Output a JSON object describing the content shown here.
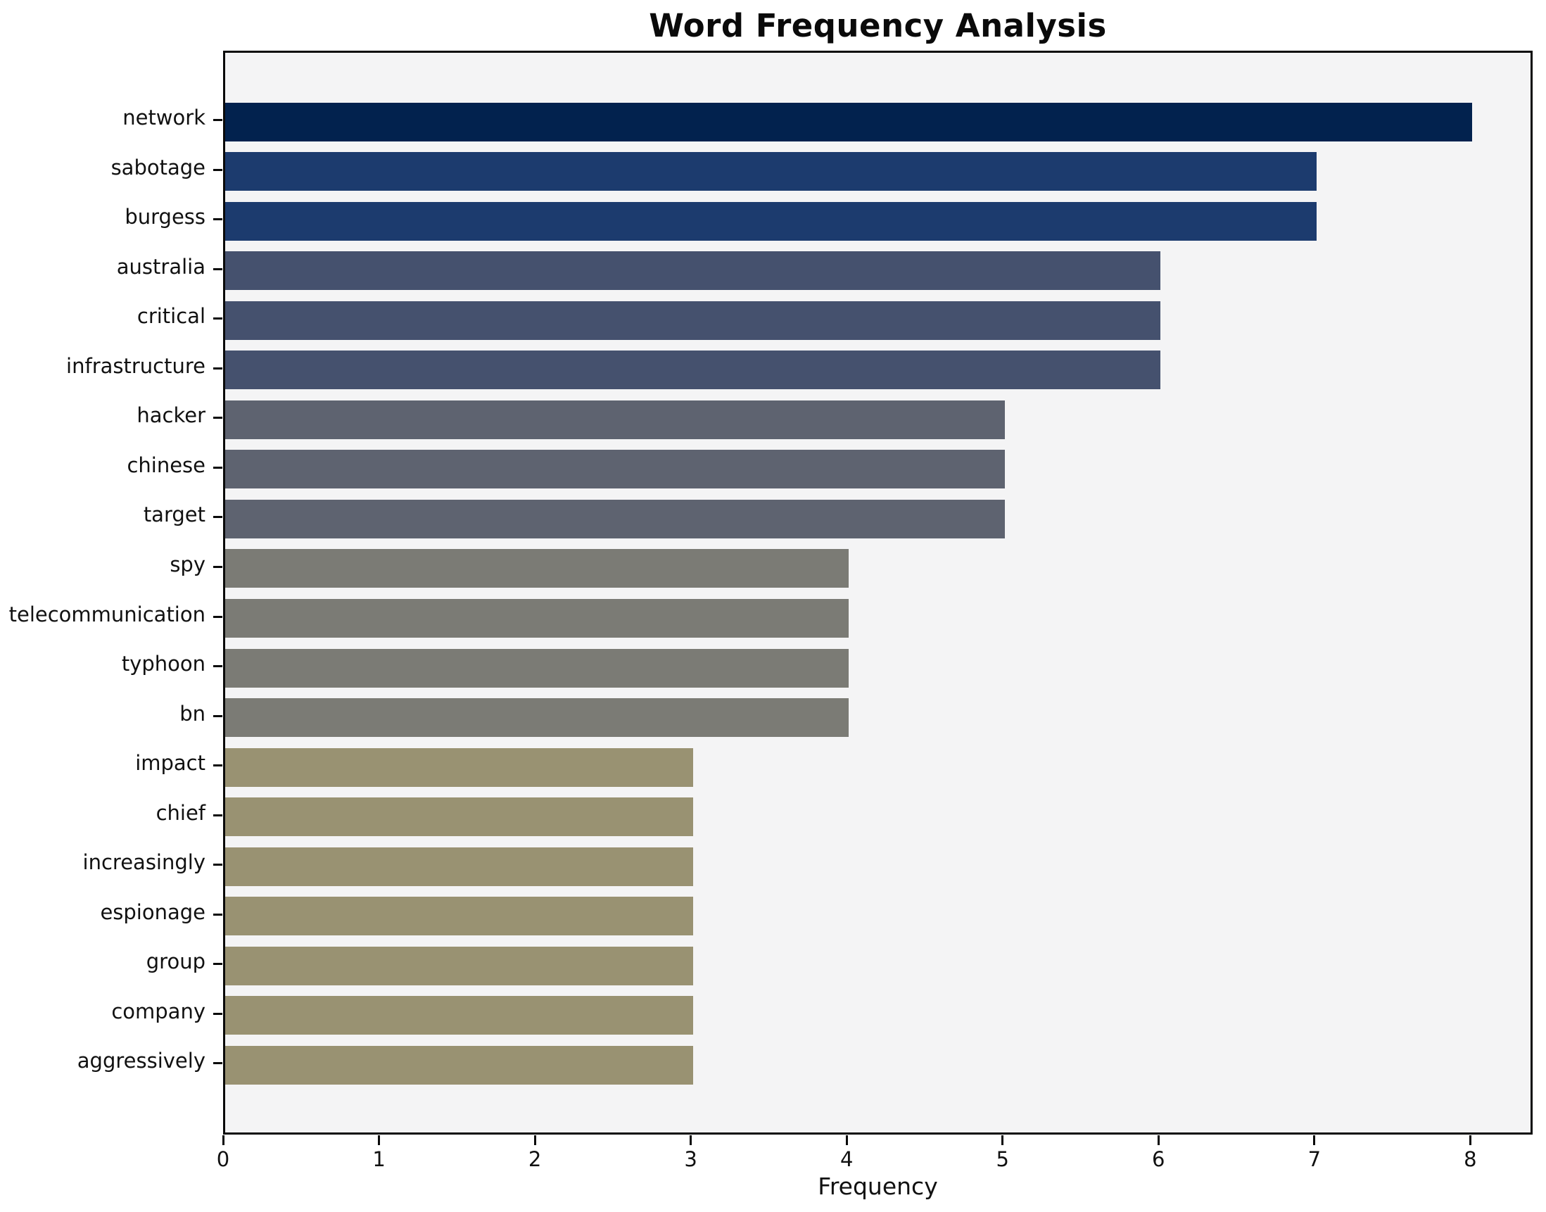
{
  "chart_data": {
    "type": "bar",
    "orientation": "horizontal",
    "title": "Word Frequency Analysis",
    "xlabel": "Frequency",
    "ylabel": "",
    "categories": [
      "network",
      "sabotage",
      "burgess",
      "australia",
      "critical",
      "infrastructure",
      "hacker",
      "chinese",
      "target",
      "spy",
      "telecommunication",
      "typhoon",
      "bn",
      "impact",
      "chief",
      "increasingly",
      "espionage",
      "group",
      "company",
      "aggressively"
    ],
    "values": [
      8,
      7,
      7,
      6,
      6,
      6,
      5,
      5,
      5,
      4,
      4,
      4,
      4,
      3,
      3,
      3,
      3,
      3,
      3,
      3
    ],
    "xlim": [
      0,
      8.4
    ],
    "x_ticks": [
      0,
      1,
      2,
      3,
      4,
      5,
      6,
      7,
      8
    ],
    "grid": false,
    "legend": null,
    "colors": {
      "value_to_color": {
        "8": "#02224e",
        "7": "#1c3b6e",
        "6": "#45516e",
        "5": "#5e6370",
        "4": "#7b7b75",
        "3": "#999272"
      },
      "plot_background": "#f4f4f5",
      "figure_background": "#ffffff",
      "spine": "#0a0a0a",
      "text": "#111111"
    }
  }
}
